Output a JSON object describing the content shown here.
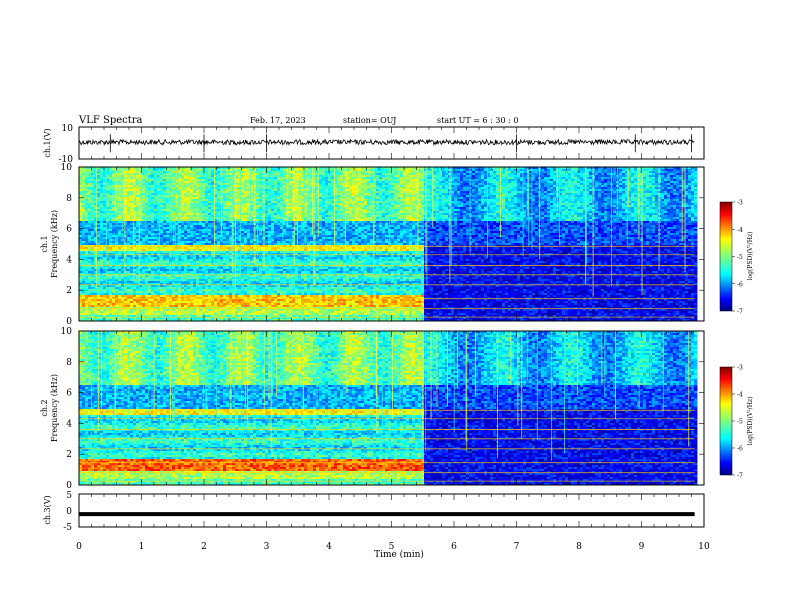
{
  "header": {
    "title": "VLF Spectra",
    "date": "Feb. 17, 2023",
    "station": "station= OUJ",
    "start": "start  UT =   6  : 30 : 0"
  },
  "chart_data": [
    {
      "type": "line",
      "panel": "ch1-waveform",
      "ylabel": "ch.1(V)",
      "ylim": [
        -10,
        10
      ],
      "y_ticks": [
        "10",
        "-10"
      ],
      "x": [
        0,
        9.85
      ],
      "y_level": 0.5,
      "note_series": "noisy waveform around ~0 V with spikes near 0.5, 2.0, 7.0, 8.9, 9.8 min"
    },
    {
      "type": "heatmap",
      "panel": "ch1-spectrogram",
      "ylabel": "ch.1",
      "ylabel2": "Frequency (kHz)",
      "ylim": [
        0,
        10
      ],
      "y_ticks": [
        "0",
        "2",
        "4",
        "6",
        "8",
        "10"
      ],
      "time_range_min": [
        0,
        9.85
      ],
      "step_change_min": 5.5,
      "colorbar": {
        "label": "log(PSD)(V²/Hz)",
        "range": [
          -7,
          -3
        ],
        "ticks": [
          "-3",
          "-4",
          "-5",
          "-6",
          "-7"
        ]
      }
    },
    {
      "type": "heatmap",
      "panel": "ch2-spectrogram",
      "ylabel": "ch.2",
      "ylabel2": "Frequency (kHz)",
      "ylim": [
        0,
        10
      ],
      "y_ticks": [
        "0",
        "2",
        "4",
        "6",
        "8",
        "10"
      ],
      "time_range_min": [
        0,
        9.85
      ],
      "step_change_min": 5.5,
      "colorbar": {
        "label": "log(PSD)(V²/Hz)",
        "range": [
          -7,
          -3
        ],
        "ticks": [
          "-3",
          "-4",
          "-5",
          "-6",
          "-7"
        ]
      }
    },
    {
      "type": "line",
      "panel": "ch3-waveform",
      "ylabel": "ch.3(V)",
      "ylim": [
        -5,
        5
      ],
      "y_ticks": [
        "5",
        "0",
        "-5"
      ],
      "x": [
        0,
        9.85
      ],
      "y": [
        -1.1,
        -1.1
      ]
    }
  ],
  "xaxis": {
    "label": "Time  (min)",
    "range": [
      0,
      10
    ],
    "ticks": [
      "0",
      "1",
      "2",
      "3",
      "4",
      "5",
      "6",
      "7",
      "8",
      "9",
      "10"
    ]
  },
  "colors": {
    "jet_low": "#00007f",
    "jet_mid": "#00ff7f",
    "jet_high": "#7f0000"
  }
}
